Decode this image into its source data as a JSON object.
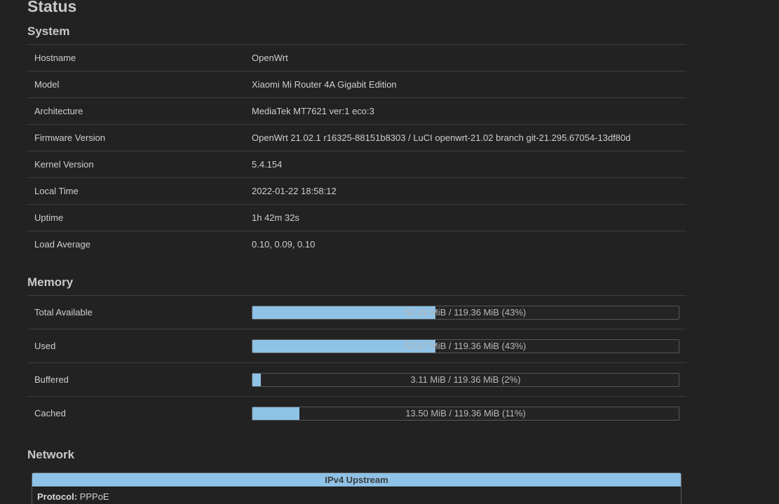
{
  "page_title": "Status",
  "system": {
    "title": "System",
    "rows": [
      {
        "label": "Hostname",
        "value": "OpenWrt"
      },
      {
        "label": "Model",
        "value": "Xiaomi Mi Router 4A Gigabit Edition"
      },
      {
        "label": "Architecture",
        "value": "MediaTek MT7621 ver:1 eco:3"
      },
      {
        "label": "Firmware Version",
        "value": "OpenWrt 21.02.1 r16325-88151b8303 / LuCI openwrt-21.02 branch git-21.295.67054-13df80d"
      },
      {
        "label": "Kernel Version",
        "value": "5.4.154"
      },
      {
        "label": "Local Time",
        "value": "2022-01-22 18:58:12"
      },
      {
        "label": "Uptime",
        "value": "1h 42m 32s"
      },
      {
        "label": "Load Average",
        "value": "0.10, 0.09, 0.10"
      }
    ]
  },
  "memory": {
    "title": "Memory",
    "rows": [
      {
        "label": "Total Available",
        "text": "52.29 MiB / 119.36 MiB (43%)",
        "percent": 43
      },
      {
        "label": "Used",
        "text": "52.07 MiB / 119.36 MiB (43%)",
        "percent": 43
      },
      {
        "label": "Buffered",
        "text": "3.11 MiB / 119.36 MiB (2%)",
        "percent": 2
      },
      {
        "label": "Cached",
        "text": "13.50 MiB / 119.36 MiB (11%)",
        "percent": 11
      }
    ]
  },
  "network": {
    "title": "Network",
    "upstream_header": "IPv4 Upstream",
    "protocol_label": "Protocol:",
    "protocol_value": "PPPoE"
  },
  "colors": {
    "background": "#222222",
    "bar_fill": "#8ec2e6",
    "text": "#cfcfcf"
  }
}
